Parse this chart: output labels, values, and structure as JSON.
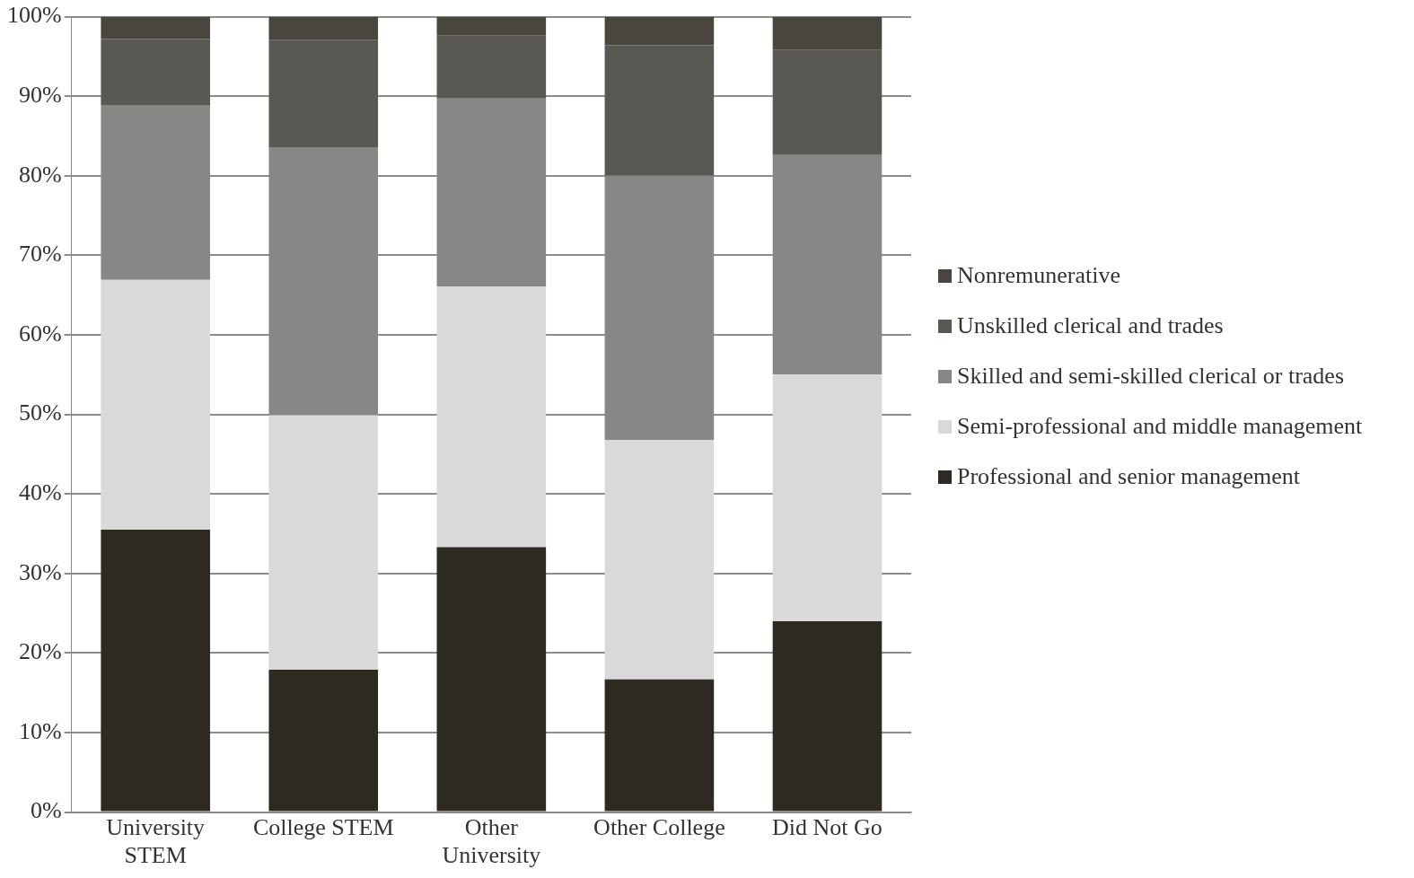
{
  "chart_data": {
    "type": "bar",
    "stacked": true,
    "categories": [
      "University STEM",
      "College STEM",
      "Other University",
      "Other College",
      "Did Not Go"
    ],
    "series": [
      {
        "name": "Professional and senior management",
        "color": "#2e2a21",
        "values": [
          35.5,
          17.9,
          33.3,
          16.7,
          24.0
        ]
      },
      {
        "name": "Semi-professional and middle management",
        "color": "#d9d9d9",
        "values": [
          31.4,
          32.0,
          32.8,
          30.1,
          31.0
        ]
      },
      {
        "name": "Skilled and semi-skilled clerical or trades",
        "color": "#878785",
        "values": [
          22.0,
          33.7,
          23.6,
          33.2,
          27.6
        ]
      },
      {
        "name": "Unskilled clerical and trades",
        "color": "#595853",
        "values": [
          8.3,
          13.5,
          7.9,
          16.4,
          13.2
        ]
      },
      {
        "name": "Nonremunerative",
        "color": "#4a463e",
        "values": [
          2.8,
          2.9,
          2.4,
          3.6,
          4.2
        ]
      }
    ],
    "ylim": [
      0,
      100
    ],
    "yticks": [
      {
        "value": 0,
        "label": "0%"
      },
      {
        "value": 10,
        "label": "10%"
      },
      {
        "value": 20,
        "label": "20%"
      },
      {
        "value": 30,
        "label": "30%"
      },
      {
        "value": 40,
        "label": "40%"
      },
      {
        "value": 50,
        "label": "50%"
      },
      {
        "value": 60,
        "label": "60%"
      },
      {
        "value": 70,
        "label": "70%"
      },
      {
        "value": 80,
        "label": "80%"
      },
      {
        "value": 90,
        "label": "90%"
      },
      {
        "value": 100,
        "label": "100%"
      }
    ],
    "grid": "y",
    "legend": "right"
  }
}
